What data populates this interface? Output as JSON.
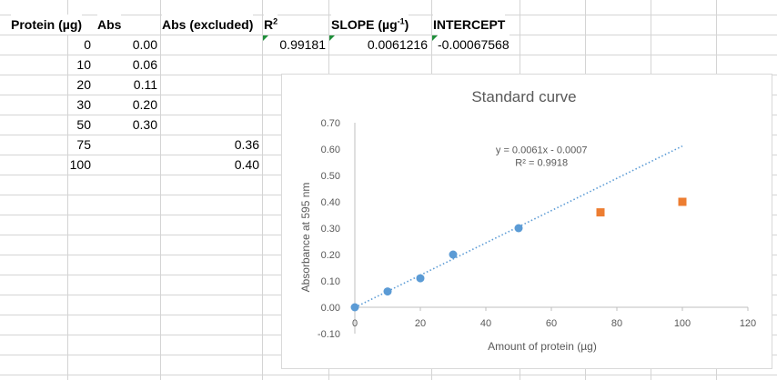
{
  "headers": {
    "protein": "Protein (µg)",
    "abs": "Abs",
    "abs_excluded": "Abs (excluded)",
    "r2": "R",
    "r2_sup": "2",
    "slope": "SLOPE (µg",
    "slope_sup": "-1",
    "slope_close": ")",
    "intercept": "INTERCEPT"
  },
  "stats": {
    "r2": "0.99181",
    "slope": "0.0061216",
    "intercept": "-0.00067568"
  },
  "rows": [
    {
      "protein": "0",
      "abs": "0.00",
      "excl": ""
    },
    {
      "protein": "10",
      "abs": "0.06",
      "excl": ""
    },
    {
      "protein": "20",
      "abs": "0.11",
      "excl": ""
    },
    {
      "protein": "30",
      "abs": "0.20",
      "excl": ""
    },
    {
      "protein": "50",
      "abs": "0.30",
      "excl": ""
    },
    {
      "protein": "75",
      "abs": "",
      "excl": "0.36"
    },
    {
      "protein": "100",
      "abs": "",
      "excl": "0.40"
    }
  ],
  "chart_data": {
    "type": "scatter",
    "title": "Standard curve",
    "xlabel": "Amount of protein (µg)",
    "ylabel": "Absorbance at 595 nm",
    "xlim": [
      0,
      120
    ],
    "ylim": [
      -0.1,
      0.7
    ],
    "xticks": [
      0,
      20,
      40,
      60,
      80,
      100,
      120
    ],
    "yticks": [
      -0.1,
      0.0,
      0.1,
      0.2,
      0.3,
      0.4,
      0.5,
      0.6,
      0.7
    ],
    "xtick_labels": [
      "0",
      "20",
      "40",
      "60",
      "80",
      "100",
      "120"
    ],
    "ytick_labels": [
      "-0.10",
      "0.00",
      "0.10",
      "0.20",
      "0.30",
      "0.40",
      "0.50",
      "0.60",
      "0.70"
    ],
    "grid": false,
    "series": [
      {
        "x": [
          0,
          10,
          20,
          30,
          50
        ],
        "y": [
          0.0,
          0.06,
          0.11,
          0.2,
          0.3
        ],
        "color": "#5b9bd5",
        "marker": "circle"
      },
      {
        "x": [
          75,
          100
        ],
        "y": [
          0.36,
          0.4
        ],
        "color": "#ed7d31",
        "marker": "square"
      }
    ],
    "trendline": {
      "slope": 0.0061216,
      "intercept": -0.00067568,
      "x_range": [
        0,
        100
      ],
      "color": "#5b9bd5",
      "style": "dotted",
      "equation": "y = 0.0061x - 0.0007",
      "r2_label": "R² = 0.9918"
    }
  }
}
